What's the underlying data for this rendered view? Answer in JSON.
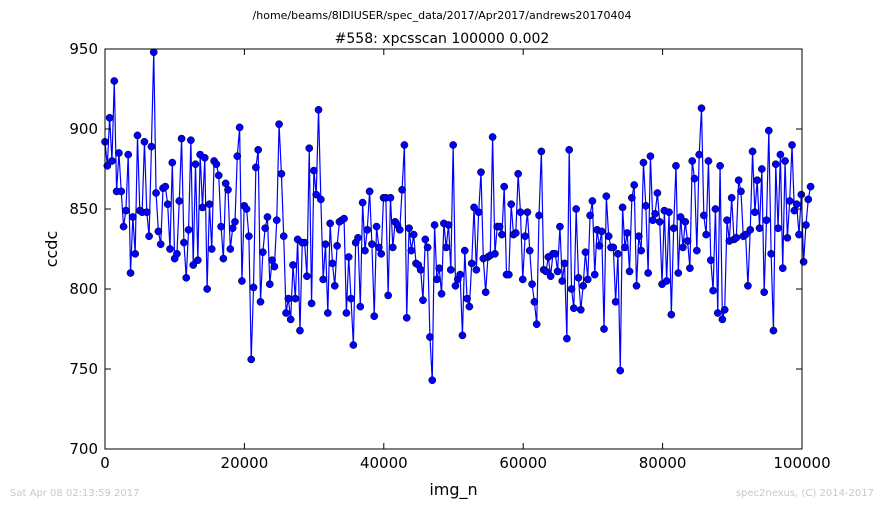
{
  "header": {
    "path": "/home/beams/8IDIUSER/spec_data/2017/Apr2017/andrews20170404",
    "scan_title": "#558: xpcsscan 100000 0.002"
  },
  "footer": {
    "timestamp": "Sat Apr 08 02:13:59 2017",
    "credit": "spec2nexus, (C) 2014-2017"
  },
  "chart_data": {
    "type": "line",
    "title": "#558: xpcsscan 100000 0.002",
    "xlabel": "img_n",
    "ylabel": "ccdc",
    "xlim": [
      0,
      100000
    ],
    "ylim": [
      700,
      950
    ],
    "xticks": [
      0,
      20000,
      40000,
      60000,
      80000,
      100000
    ],
    "yticks": [
      700,
      750,
      800,
      850,
      900,
      950
    ],
    "marker": "circle",
    "color": "#0000ff",
    "series": [
      {
        "x_start": 0,
        "x_step": 333,
        "values": [
          892,
          877,
          907,
          880,
          930,
          861,
          885,
          861,
          839,
          849,
          884,
          810,
          845,
          822,
          896,
          849,
          848,
          892,
          848,
          833,
          889,
          948,
          860,
          836,
          828,
          863,
          864,
          853,
          825,
          879,
          819,
          822,
          855,
          894,
          829,
          807,
          837,
          893,
          815,
          878,
          818,
          884,
          851,
          882,
          800,
          853,
          825,
          880,
          878,
          871,
          839,
          819,
          866,
          862,
          825,
          838,
          842,
          883,
          901,
          805,
          852,
          850,
          833,
          756,
          801,
          876,
          887,
          792,
          823,
          838,
          845,
          803,
          818,
          814,
          843,
          903,
          872,
          833,
          785,
          794,
          781,
          815,
          794,
          831,
          774,
          829,
          829,
          808,
          888,
          791,
          874,
          859,
          912,
          856,
          806,
          828,
          785,
          841,
          816,
          802,
          827,
          842,
          843,
          844,
          785,
          820,
          794,
          765,
          829,
          832,
          789,
          854,
          824,
          837,
          861,
          828,
          783,
          839,
          826,
          822,
          857,
          857,
          796,
          857,
          826,
          842,
          840,
          837,
          862,
          890,
          782,
          838,
          824,
          834,
          816,
          815,
          812,
          793,
          831,
          826,
          770,
          743,
          840,
          806,
          813,
          797,
          841,
          826,
          840,
          812,
          890,
          802,
          806,
          809,
          771,
          824,
          794,
          789,
          816,
          851,
          812,
          848,
          873,
          819,
          798,
          820,
          821,
          895,
          822,
          839,
          839,
          834,
          864,
          809,
          809,
          853,
          834,
          835,
          872,
          848,
          806,
          833,
          848,
          824,
          803,
          792,
          778,
          846,
          886,
          812,
          811,
          820,
          808,
          822,
          822,
          811,
          839,
          805,
          816,
          769,
          887,
          800,
          788,
          850,
          807,
          787,
          802,
          823,
          806,
          846,
          855,
          809,
          837,
          827,
          836,
          775,
          858,
          833,
          826,
          826,
          792,
          822,
          749,
          851,
          826,
          835,
          811,
          857,
          865,
          802,
          833,
          824,
          879,
          852,
          810,
          883,
          843,
          847,
          860,
          842,
          803,
          849,
          805,
          848,
          784,
          838,
          877,
          810,
          845,
          826,
          842,
          830,
          813,
          880,
          869,
          824,
          884,
          913,
          846,
          834,
          880,
          818,
          799,
          850,
          785,
          877,
          781,
          787,
          843,
          830,
          857,
          831,
          832,
          868,
          861,
          833,
          834,
          802,
          837,
          886,
          848,
          868,
          838,
          875,
          798,
          843,
          899,
          822,
          774,
          878,
          838,
          884,
          813,
          880,
          832,
          855,
          890,
          849,
          853,
          834,
          859,
          817,
          840,
          856,
          864
        ]
      }
    ]
  }
}
